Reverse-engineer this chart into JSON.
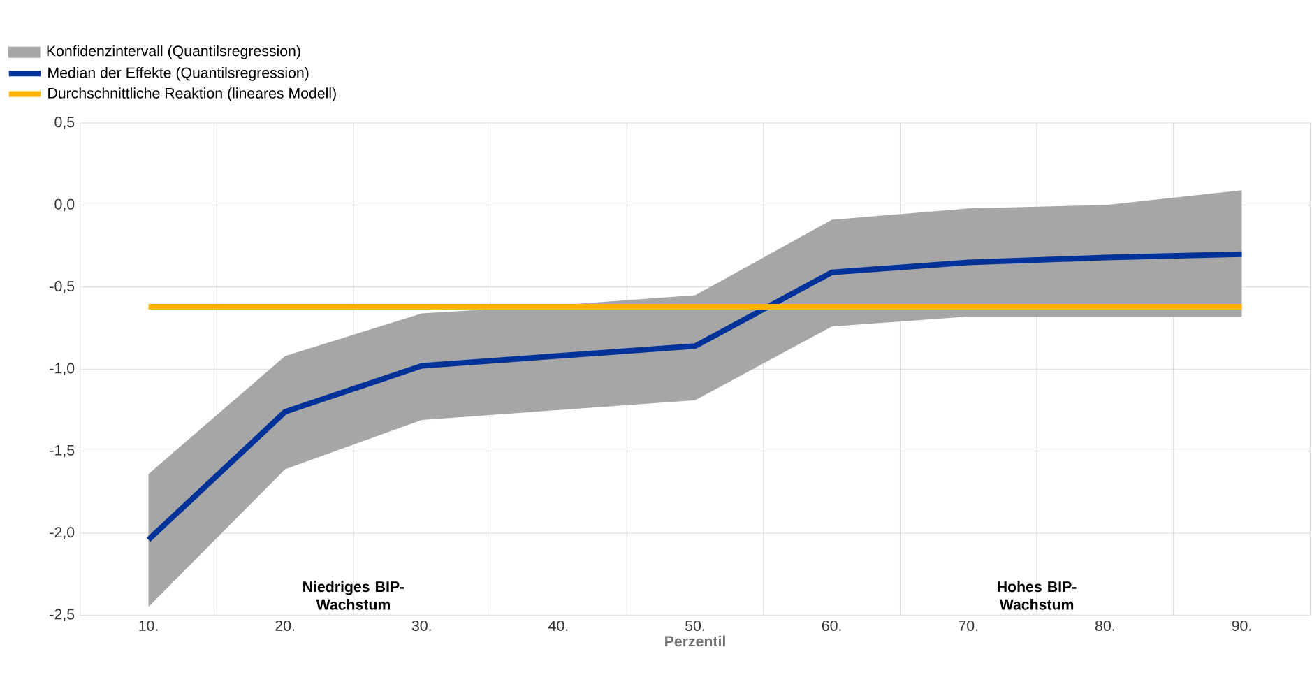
{
  "chart_data": {
    "type": "line",
    "xlabel": "Perzentil",
    "categories": [
      "10.",
      "20.",
      "30.",
      "40.",
      "50.",
      "60.",
      "70.",
      "80.",
      "90."
    ],
    "series": [
      {
        "name": "Median der Effekte (Quantilsregression)",
        "color": "#003299",
        "values": [
          -2.04,
          -1.26,
          -0.98,
          -0.92,
          -0.86,
          -0.41,
          -0.35,
          -0.32,
          -0.3
        ],
        "lower": [
          -2.45,
          -1.61,
          -1.31,
          -1.25,
          -1.19,
          -0.74,
          -0.68,
          -0.68,
          -0.68
        ],
        "upper": [
          -1.64,
          -0.92,
          -0.66,
          -0.61,
          -0.55,
          -0.09,
          -0.02,
          0.0,
          0.09
        ]
      },
      {
        "name": "Durchschnittliche Reaktion (lineares Modell)",
        "color": "#ffb400",
        "values": [
          -0.62,
          -0.62,
          -0.62,
          -0.62,
          -0.62,
          -0.62,
          -0.62,
          -0.62,
          -0.62
        ]
      }
    ],
    "ylim": [
      -2.5,
      0.5
    ],
    "yticks": [
      {
        "value": -2.5,
        "label": "-2,5"
      },
      {
        "value": -2.0,
        "label": "-2,0"
      },
      {
        "value": -1.5,
        "label": "-1,5"
      },
      {
        "value": -1.0,
        "label": "-1,0"
      },
      {
        "value": -0.5,
        "label": "-0,5"
      },
      {
        "value": 0.0,
        "label": "0,0"
      },
      {
        "value": 0.5,
        "label": "0,5"
      }
    ],
    "annotations": [
      "Konfidenzintervall (Quantilsregression)",
      "Niedriges BIP-Wachstum",
      "Hohes BIP-Wachstum"
    ],
    "grid": true,
    "legend": "top left",
    "marker": "none",
    "line_style": "solid"
  }
}
